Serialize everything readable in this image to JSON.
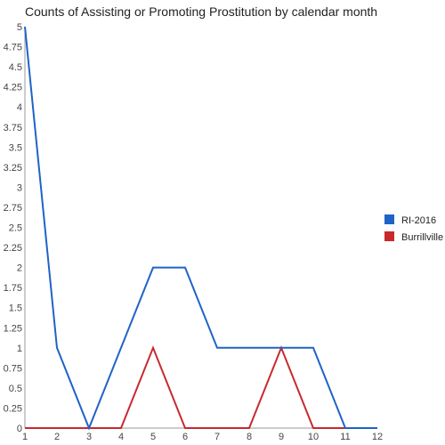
{
  "chart_data": {
    "type": "line",
    "title": "Counts of Assisting or Promoting Prostitution by calendar month",
    "xlabel": "",
    "ylabel": "",
    "x": [
      1,
      2,
      3,
      4,
      5,
      6,
      7,
      8,
      9,
      10,
      11,
      12
    ],
    "xlim": [
      1,
      12
    ],
    "ylim": [
      0,
      5
    ],
    "y_ticks": [
      "0",
      "0.25",
      "0.5",
      "0.75",
      "1",
      "1.25",
      "1.5",
      "1.75",
      "2",
      "2.25",
      "2.5",
      "2.75",
      "3",
      "3.25",
      "3.5",
      "3.75",
      "4",
      "4.25",
      "4.5",
      "4.75",
      "5"
    ],
    "x_ticks": [
      "1",
      "2",
      "3",
      "4",
      "5",
      "6",
      "7",
      "8",
      "9",
      "10",
      "11",
      "12"
    ],
    "grid": false,
    "legend_position": "right",
    "series": [
      {
        "name": "RI-2016",
        "color": "#1f63c6",
        "values": [
          5,
          1,
          0,
          1,
          2,
          2,
          1,
          1,
          1,
          1,
          0,
          0
        ]
      },
      {
        "name": "Burrillville",
        "color": "#c9282d",
        "values": [
          0,
          0,
          0,
          0,
          1,
          0,
          0,
          0,
          1,
          0,
          0,
          0
        ]
      }
    ]
  }
}
